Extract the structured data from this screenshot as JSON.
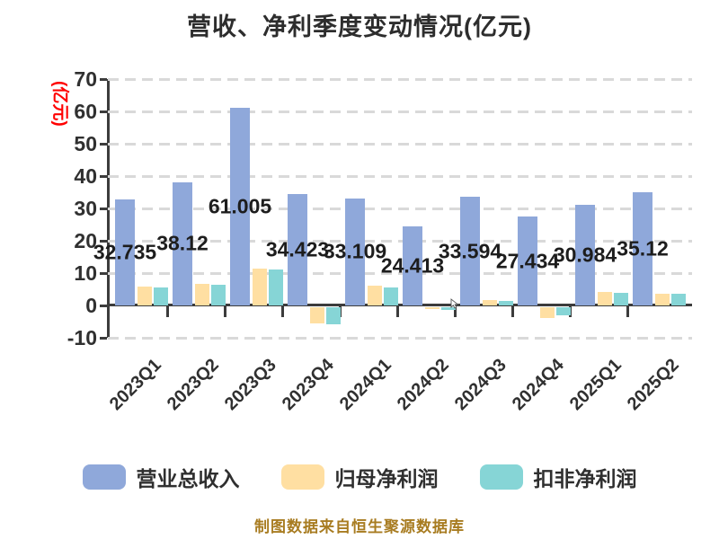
{
  "title": "营收、净利季度变动情况(亿元)",
  "y_axis_label": "(亿元)",
  "footer": "制图数据来自恒生聚源数据库",
  "colors": {
    "revenue": "#8fa8da",
    "net_profit": "#ffdfa2",
    "non_gaap_profit": "#86d5d6",
    "axis": "#3c3c3c",
    "grid": "#d9d9d9",
    "value_label": "#1d1d1d",
    "y_axis_label_red": "#ff0000",
    "footer_text": "#a87c21"
  },
  "legend": {
    "items": [
      {
        "label": "营业总收入",
        "color": "#8fa8da",
        "key": "revenue"
      },
      {
        "label": "归母净利润",
        "color": "#ffdfa2",
        "key": "net-profit"
      },
      {
        "label": "扣非净利润",
        "color": "#86d5d6",
        "key": "non-gaap-profit"
      }
    ]
  },
  "chart_data": {
    "type": "bar",
    "title": "营收、净利季度变动情况(亿元)",
    "ylabel": "(亿元)",
    "categories": [
      "2023Q1",
      "2023Q2",
      "2023Q3",
      "2023Q4",
      "2024Q1",
      "2024Q2",
      "2024Q3",
      "2024Q4",
      "2025Q1",
      "2025Q2"
    ],
    "series": [
      {
        "name": "营业总收入",
        "key": "revenue",
        "color": "#8fa8da",
        "values": [
          32.735,
          38.12,
          61.005,
          34.423,
          33.109,
          24.413,
          33.594,
          27.434,
          30.984,
          35.12
        ],
        "labels": [
          "32.735",
          "38.12",
          "61.005",
          "34.423",
          "33.109",
          "24.413",
          "33.594",
          "27.434",
          "30.984",
          "35.12"
        ]
      },
      {
        "name": "归母净利润",
        "key": "net-profit",
        "color": "#ffdfa2",
        "values": [
          5.7,
          6.6,
          11.4,
          -5.0,
          6.0,
          -0.8,
          1.7,
          -3.6,
          4.1,
          3.7
        ],
        "labels": []
      },
      {
        "name": "扣非净利润",
        "key": "non-gaap-profit",
        "color": "#86d5d6",
        "values": [
          5.5,
          6.4,
          11.2,
          -5.4,
          5.6,
          -1.0,
          1.4,
          -2.6,
          3.8,
          3.6
        ],
        "labels": []
      }
    ],
    "ylim": [
      -10,
      70
    ],
    "yticks": [
      70,
      60,
      50,
      40,
      30,
      20,
      10,
      0,
      -10
    ],
    "grid": true,
    "grid_style": "dashed",
    "legend_position": "bottom",
    "source_note": "制图数据来自恒生聚源数据库"
  }
}
